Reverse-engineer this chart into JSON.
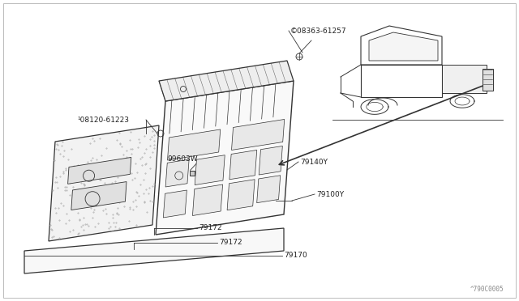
{
  "background_color": "#ffffff",
  "fig_width": 6.4,
  "fig_height": 3.72,
  "dpi": 100,
  "lc": "#333333",
  "lc_light": "#888888",
  "labels": {
    "part_s": "©08363-61257",
    "part_b": "¹08120-61223",
    "79140Y": "79140Y",
    "79100Y": "79100Y",
    "99603W": "99603W",
    "79172a": "79172",
    "79172b": "79172",
    "79170": "79170",
    "watermark": "^790C0005"
  }
}
